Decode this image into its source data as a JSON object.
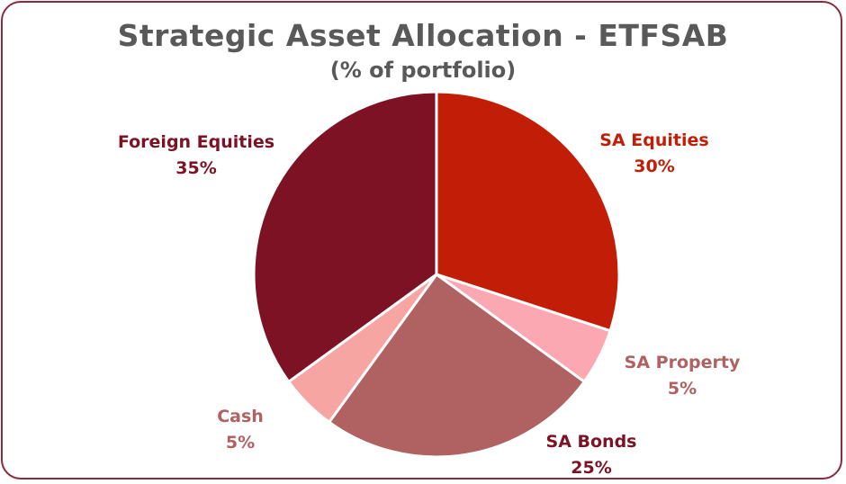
{
  "chart_data": {
    "type": "pie",
    "title": "Strategic Asset Allocation - ETFSAB",
    "subtitle": "(% of portfolio)",
    "categories": [
      "SA Equities",
      "SA Property",
      "SA Bonds",
      "Cash",
      "Foreign Equities"
    ],
    "values": [
      30,
      5,
      25,
      5,
      35
    ],
    "unit": "%",
    "start_angle": "12 o'clock, clockwise",
    "colors": [
      "#c21d06",
      "#fca8b2",
      "#af6261",
      "#f6a5a2",
      "#7c1223"
    ],
    "label_colors": [
      "#c21d06",
      "#af6261",
      "#7c1223",
      "#af6261",
      "#7c1223"
    ],
    "legend": "none (data labels outside slices)"
  },
  "labels": [
    {
      "name": "SA Equities",
      "pct": "30%"
    },
    {
      "name": "SA Property",
      "pct": "5%"
    },
    {
      "name": "SA Bonds",
      "pct": "25%"
    },
    {
      "name": "Cash",
      "pct": "5%"
    },
    {
      "name": "Foreign Equities",
      "pct": "35%"
    }
  ],
  "frame_color": "#8a2a3e",
  "title_color": "#595959"
}
